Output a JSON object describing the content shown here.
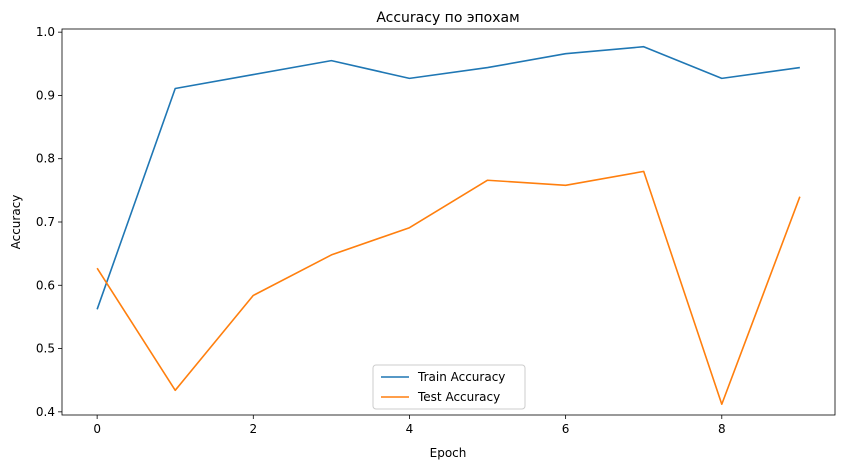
{
  "chart_data": {
    "type": "line",
    "title": "Accuracy по эпохам",
    "xlabel": "Epoch",
    "ylabel": "Accuracy",
    "xlim": [
      -0.45,
      9.45
    ],
    "ylim": [
      0.395,
      1.005
    ],
    "xticks": [
      0,
      2,
      4,
      6,
      8
    ],
    "yticks": [
      0.4,
      0.5,
      0.6,
      0.7,
      0.8,
      0.9,
      1.0
    ],
    "ytick_labels": [
      "0.4",
      "0.5",
      "0.6",
      "0.7",
      "0.8",
      "0.9",
      "1.0"
    ],
    "x": [
      0,
      1,
      2,
      3,
      4,
      5,
      6,
      7,
      8,
      9
    ],
    "series": [
      {
        "name": "Train Accuracy",
        "color": "#1f77b4",
        "values": [
          0.562,
          0.911,
          0.933,
          0.955,
          0.927,
          0.944,
          0.966,
          0.977,
          0.927,
          0.944
        ]
      },
      {
        "name": "Test Accuracy",
        "color": "#ff7f0e",
        "values": [
          0.627,
          0.434,
          0.584,
          0.648,
          0.691,
          0.766,
          0.758,
          0.78,
          0.412,
          0.74
        ]
      }
    ],
    "grid": false,
    "legend_position": "lower center"
  }
}
